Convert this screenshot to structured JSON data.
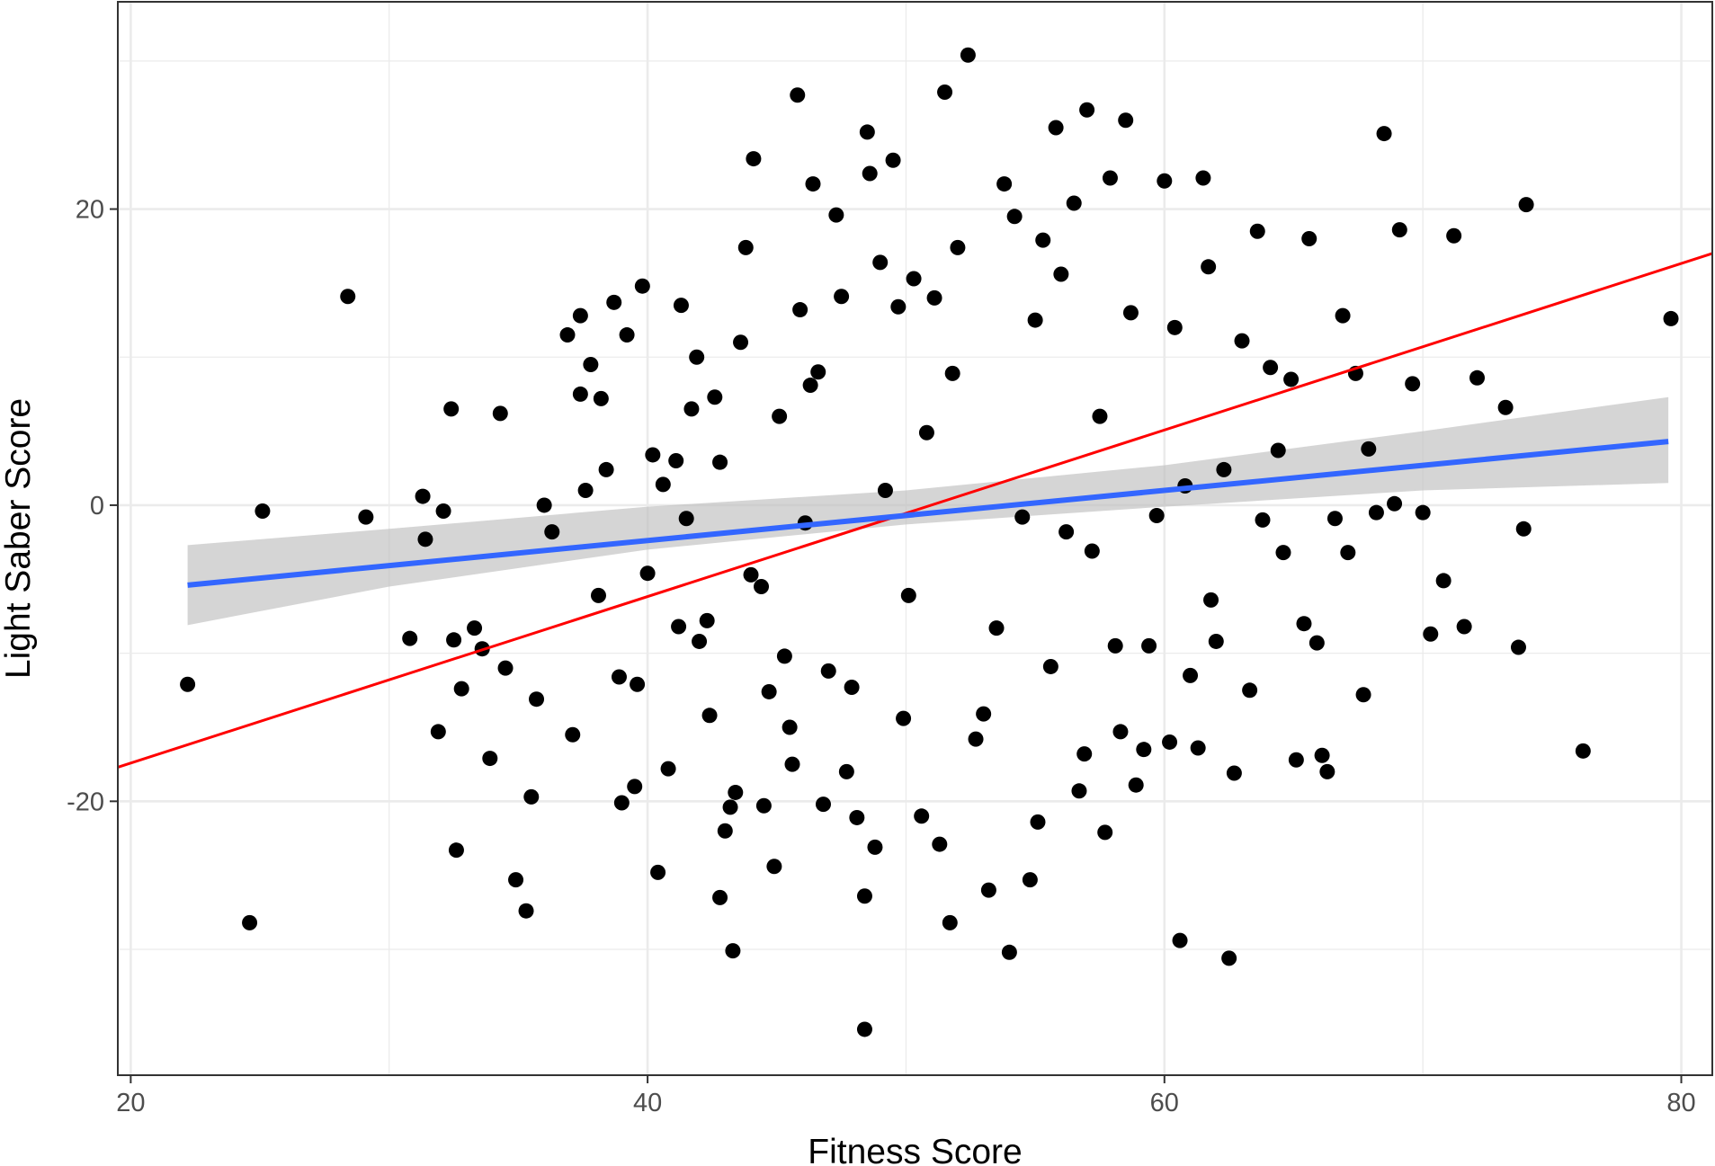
{
  "chart_data": {
    "type": "scatter",
    "xlabel": "Fitness Score",
    "ylabel": "Light Saber Score",
    "xlim": [
      19.5,
      81.2
    ],
    "ylim": [
      -38.5,
      34
    ],
    "x_ticks": [
      20,
      40,
      60,
      80
    ],
    "x_tick_labels": [
      "20",
      "40",
      "60",
      "80"
    ],
    "y_ticks": [
      -20,
      0,
      20
    ],
    "y_tick_labels": [
      "-20",
      "0",
      "20"
    ],
    "grid": true,
    "legend": "none",
    "point_color": "#000000",
    "fit_line": {
      "x": [
        22.2,
        79.5
      ],
      "y": [
        -5.4,
        4.3
      ],
      "color": "#3366ff"
    },
    "confidence_band": {
      "x": [
        22.2,
        30,
        40,
        50,
        60,
        70,
        79.5
      ],
      "lower": [
        -8.1,
        -5.5,
        -3.0,
        -1.3,
        -0.1,
        1.0,
        1.5
      ],
      "upper": [
        -2.7,
        -1.6,
        -0.1,
        1.0,
        2.7,
        5.0,
        7.3
      ],
      "color": "#bfbfbf"
    },
    "reference_line": {
      "x": [
        19.5,
        81.2
      ],
      "y": [
        -17.7,
        17.0
      ],
      "color": "#ff0000"
    },
    "points": [
      [
        22.2,
        -12.1
      ],
      [
        24.6,
        -28.2
      ],
      [
        25.1,
        -0.4
      ],
      [
        28.4,
        14.1
      ],
      [
        29.1,
        -0.8
      ],
      [
        30.8,
        -9.0
      ],
      [
        31.3,
        0.6
      ],
      [
        31.4,
        -2.3
      ],
      [
        31.9,
        -15.3
      ],
      [
        32.1,
        -0.4
      ],
      [
        32.4,
        6.5
      ],
      [
        32.5,
        -9.1
      ],
      [
        32.6,
        -23.3
      ],
      [
        32.8,
        -12.4
      ],
      [
        33.3,
        -8.3
      ],
      [
        33.6,
        -9.7
      ],
      [
        33.9,
        -17.1
      ],
      [
        34.3,
        6.2
      ],
      [
        34.5,
        -11.0
      ],
      [
        34.9,
        -25.3
      ],
      [
        35.3,
        -27.4
      ],
      [
        35.5,
        -19.7
      ],
      [
        35.7,
        -13.1
      ],
      [
        36.0,
        0.0
      ],
      [
        36.3,
        -1.8
      ],
      [
        36.9,
        11.5
      ],
      [
        37.1,
        -15.5
      ],
      [
        37.4,
        7.5
      ],
      [
        37.4,
        12.8
      ],
      [
        37.6,
        1.0
      ],
      [
        37.8,
        9.5
      ],
      [
        38.1,
        -6.1
      ],
      [
        38.2,
        7.2
      ],
      [
        38.4,
        2.4
      ],
      [
        38.7,
        13.7
      ],
      [
        38.9,
        -11.6
      ],
      [
        39.0,
        -20.1
      ],
      [
        39.2,
        11.5
      ],
      [
        39.5,
        -19.0
      ],
      [
        39.6,
        -12.1
      ],
      [
        39.8,
        14.8
      ],
      [
        40.0,
        -4.6
      ],
      [
        40.2,
        3.4
      ],
      [
        40.4,
        -24.8
      ],
      [
        40.6,
        1.4
      ],
      [
        40.8,
        -17.8
      ],
      [
        41.1,
        3.0
      ],
      [
        41.2,
        -8.2
      ],
      [
        41.3,
        13.5
      ],
      [
        41.5,
        -0.9
      ],
      [
        41.7,
        6.5
      ],
      [
        41.9,
        10.0
      ],
      [
        42.0,
        -9.2
      ],
      [
        42.3,
        -7.8
      ],
      [
        42.4,
        -14.2
      ],
      [
        42.6,
        7.3
      ],
      [
        42.8,
        2.9
      ],
      [
        42.8,
        -26.5
      ],
      [
        43.0,
        -22.0
      ],
      [
        43.2,
        -20.4
      ],
      [
        43.3,
        -30.1
      ],
      [
        43.4,
        -19.4
      ],
      [
        43.6,
        11.0
      ],
      [
        43.8,
        17.4
      ],
      [
        44.0,
        -4.7
      ],
      [
        44.1,
        23.4
      ],
      [
        44.4,
        -5.5
      ],
      [
        44.5,
        -20.3
      ],
      [
        44.7,
        -12.6
      ],
      [
        44.9,
        -24.4
      ],
      [
        45.1,
        6.0
      ],
      [
        45.3,
        -10.2
      ],
      [
        45.5,
        -15.0
      ],
      [
        45.6,
        -17.5
      ],
      [
        45.8,
        27.7
      ],
      [
        45.9,
        13.2
      ],
      [
        46.1,
        -1.2
      ],
      [
        46.3,
        8.1
      ],
      [
        46.4,
        21.7
      ],
      [
        46.6,
        9.0
      ],
      [
        46.8,
        -20.2
      ],
      [
        47.0,
        -11.2
      ],
      [
        47.3,
        19.6
      ],
      [
        47.5,
        14.1
      ],
      [
        47.7,
        -18.0
      ],
      [
        47.9,
        -12.3
      ],
      [
        48.1,
        -21.1
      ],
      [
        48.4,
        -35.4
      ],
      [
        48.4,
        -26.4
      ],
      [
        48.5,
        25.2
      ],
      [
        48.6,
        22.4
      ],
      [
        48.8,
        -23.1
      ],
      [
        49.0,
        16.4
      ],
      [
        49.2,
        1.0
      ],
      [
        49.5,
        23.3
      ],
      [
        49.7,
        13.4
      ],
      [
        49.9,
        -14.4
      ],
      [
        50.1,
        -6.1
      ],
      [
        50.3,
        15.3
      ],
      [
        50.6,
        -21.0
      ],
      [
        50.8,
        4.9
      ],
      [
        51.1,
        14.0
      ],
      [
        51.3,
        -22.9
      ],
      [
        51.5,
        27.9
      ],
      [
        51.7,
        -28.2
      ],
      [
        51.8,
        8.9
      ],
      [
        52.0,
        17.4
      ],
      [
        52.4,
        30.4
      ],
      [
        52.7,
        -15.8
      ],
      [
        53.0,
        -14.1
      ],
      [
        53.2,
        -26.0
      ],
      [
        53.5,
        -8.3
      ],
      [
        53.8,
        21.7
      ],
      [
        54.0,
        -30.2
      ],
      [
        54.2,
        19.5
      ],
      [
        54.5,
        -0.8
      ],
      [
        54.8,
        -25.3
      ],
      [
        55.0,
        12.5
      ],
      [
        55.1,
        -21.4
      ],
      [
        55.3,
        17.9
      ],
      [
        55.6,
        -10.9
      ],
      [
        55.8,
        25.5
      ],
      [
        56.0,
        15.6
      ],
      [
        56.2,
        -1.8
      ],
      [
        56.5,
        20.4
      ],
      [
        56.7,
        -19.3
      ],
      [
        56.9,
        -16.8
      ],
      [
        57.0,
        26.7
      ],
      [
        57.2,
        -3.1
      ],
      [
        57.5,
        6.0
      ],
      [
        57.7,
        -22.1
      ],
      [
        57.9,
        22.1
      ],
      [
        58.1,
        -9.5
      ],
      [
        58.3,
        -15.3
      ],
      [
        58.5,
        26.0
      ],
      [
        58.7,
        13.0
      ],
      [
        58.9,
        -18.9
      ],
      [
        59.2,
        -16.5
      ],
      [
        59.4,
        -9.5
      ],
      [
        59.7,
        -0.7
      ],
      [
        60.0,
        21.9
      ],
      [
        60.2,
        -16.0
      ],
      [
        60.4,
        12.0
      ],
      [
        60.6,
        -29.4
      ],
      [
        60.8,
        1.3
      ],
      [
        61.0,
        -11.5
      ],
      [
        61.3,
        -16.4
      ],
      [
        61.5,
        22.1
      ],
      [
        61.7,
        16.1
      ],
      [
        61.8,
        -6.4
      ],
      [
        62.0,
        -9.2
      ],
      [
        62.3,
        2.4
      ],
      [
        62.5,
        -30.6
      ],
      [
        62.7,
        -18.1
      ],
      [
        63.0,
        11.1
      ],
      [
        63.3,
        -12.5
      ],
      [
        63.6,
        18.5
      ],
      [
        63.8,
        -1.0
      ],
      [
        64.1,
        9.3
      ],
      [
        64.4,
        3.7
      ],
      [
        64.6,
        -3.2
      ],
      [
        64.9,
        8.5
      ],
      [
        65.1,
        -17.2
      ],
      [
        65.4,
        -8.0
      ],
      [
        65.6,
        18.0
      ],
      [
        65.9,
        -9.3
      ],
      [
        66.1,
        -16.9
      ],
      [
        66.3,
        -18.0
      ],
      [
        66.6,
        -0.9
      ],
      [
        66.9,
        12.8
      ],
      [
        67.1,
        -3.2
      ],
      [
        67.4,
        8.9
      ],
      [
        67.7,
        -12.8
      ],
      [
        67.9,
        3.8
      ],
      [
        68.2,
        -0.5
      ],
      [
        68.5,
        25.1
      ],
      [
        68.9,
        0.1
      ],
      [
        69.1,
        18.6
      ],
      [
        69.6,
        8.2
      ],
      [
        70.0,
        -0.5
      ],
      [
        70.3,
        -8.7
      ],
      [
        70.8,
        -5.1
      ],
      [
        71.2,
        18.2
      ],
      [
        71.6,
        -8.2
      ],
      [
        72.1,
        8.6
      ],
      [
        73.2,
        6.6
      ],
      [
        73.7,
        -9.6
      ],
      [
        73.9,
        -1.6
      ],
      [
        74.0,
        20.3
      ],
      [
        76.2,
        -16.6
      ],
      [
        79.6,
        12.6
      ]
    ]
  }
}
